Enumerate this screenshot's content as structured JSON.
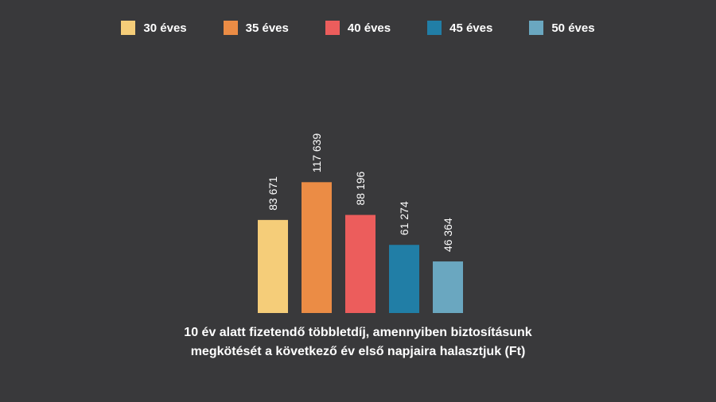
{
  "legend": [
    {
      "label": "30 éves",
      "color": "#f5cd79"
    },
    {
      "label": "35 éves",
      "color": "#eb8c45"
    },
    {
      "label": "40 éves",
      "color": "#ec5d5c"
    },
    {
      "label": "45 éves",
      "color": "#217ea6"
    },
    {
      "label": "50 éves",
      "color": "#6aa7c0"
    }
  ],
  "caption": {
    "line1": "10 év alatt fizetendő többletdíj, amennyiben biztosításunk",
    "line2": "megkötését a következő év első napjaira halasztjuk (Ft)"
  },
  "chart_data": {
    "type": "bar",
    "title": "10 év alatt fizetendő többletdíj, amennyiben biztosításunk megkötését a következő év első napjaira halasztjuk (Ft)",
    "categories": [
      "30 éves",
      "35 éves",
      "40 éves",
      "45 éves",
      "50 éves"
    ],
    "values": [
      83671,
      117639,
      88196,
      61274,
      46364
    ],
    "value_labels": [
      "83 671",
      "117 639",
      "88 196",
      "61 274",
      "46 364"
    ],
    "colors": [
      "#f5cd79",
      "#eb8c45",
      "#ec5d5c",
      "#217ea6",
      "#6aa7c0"
    ],
    "xlabel": "",
    "ylabel": "",
    "legend_position": "top",
    "grid": false,
    "axes_visible": false
  }
}
